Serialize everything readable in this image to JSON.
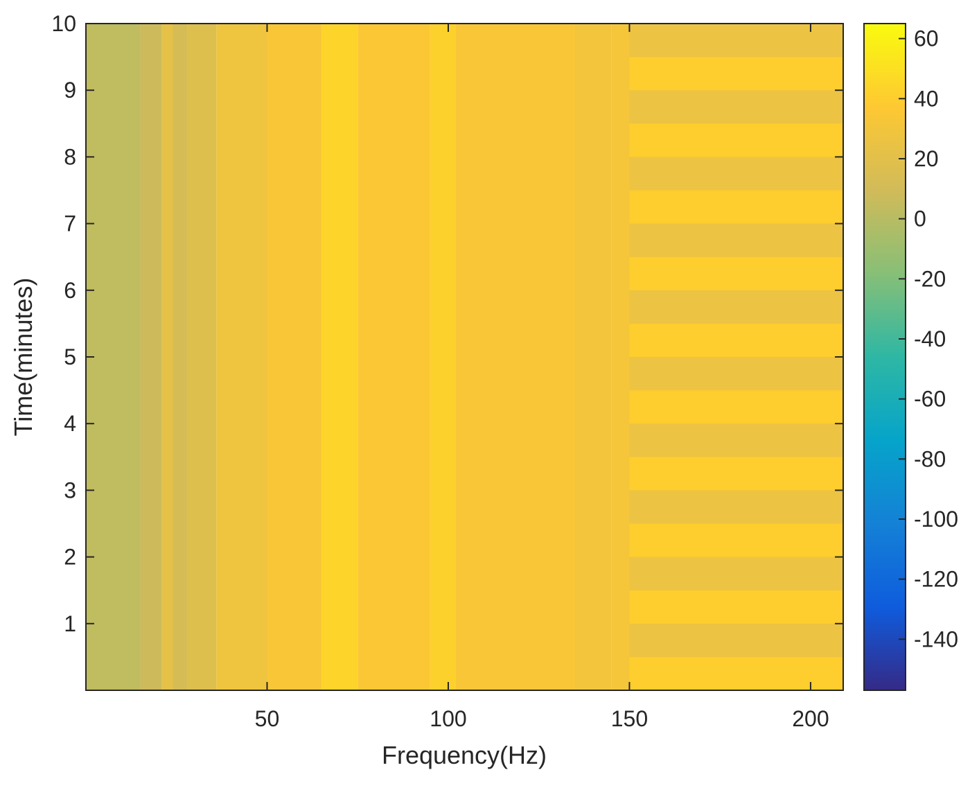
{
  "chart_data": {
    "type": "heatmap",
    "xlabel": "Frequency(Hz)",
    "ylabel": "Time(minutes)",
    "xlim": [
      0,
      209
    ],
    "ylim": [
      0,
      10
    ],
    "xticks": [
      50,
      100,
      150,
      200
    ],
    "yticks": [
      1,
      2,
      3,
      4,
      5,
      6,
      7,
      8,
      9,
      10
    ],
    "colorbar": {
      "colormap": "parula",
      "clim": [
        -157,
        65
      ],
      "ticks": [
        60,
        40,
        20,
        0,
        -20,
        -40,
        -60,
        -80,
        -100,
        -120,
        -140
      ],
      "placement": "right"
    },
    "grid": false,
    "frequency_bands": [
      {
        "x_from": 0,
        "x_to": 15,
        "level_db": 3
      },
      {
        "x_from": 15,
        "x_to": 21,
        "level_db": 8
      },
      {
        "x_from": 21,
        "x_to": 24,
        "level_db": 22
      },
      {
        "x_from": 24,
        "x_to": 28,
        "level_db": 12
      },
      {
        "x_from": 28,
        "x_to": 36,
        "level_db": 17
      },
      {
        "x_from": 36,
        "x_to": 50,
        "level_db": 28
      },
      {
        "x_from": 50,
        "x_to": 65,
        "level_db": 34
      },
      {
        "x_from": 65,
        "x_to": 75,
        "level_db": 44
      },
      {
        "x_from": 75,
        "x_to": 95,
        "level_db": 36
      },
      {
        "x_from": 95,
        "x_to": 102,
        "level_db": 42
      },
      {
        "x_from": 102,
        "x_to": 135,
        "level_db": 34
      },
      {
        "x_from": 135,
        "x_to": 145,
        "level_db": 30
      },
      {
        "x_from": 145,
        "x_to": 209,
        "level_db": 32
      }
    ],
    "time_modulation": {
      "x_from": 150,
      "x_to": 209,
      "period_minutes": 1,
      "high_level_db": 40,
      "low_level_db": 26
    }
  }
}
